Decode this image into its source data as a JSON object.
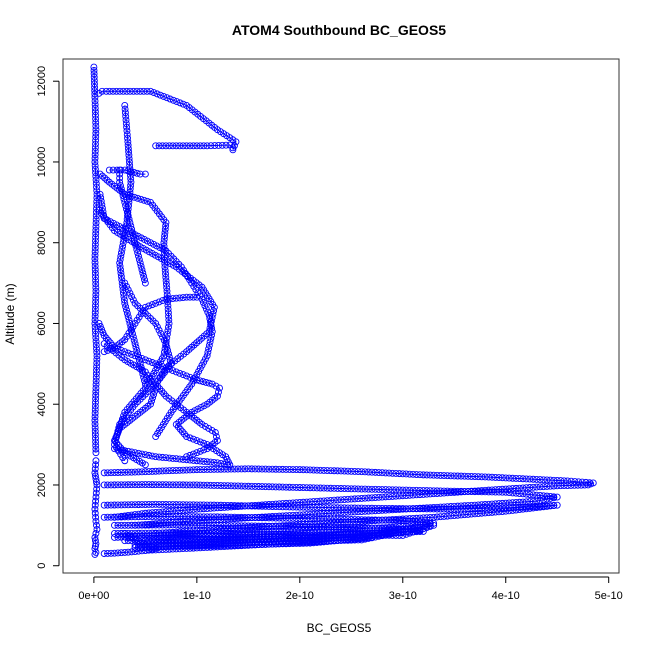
{
  "chart_data": {
    "type": "scatter",
    "title": "ATOM4 Southbound BC_GEOS5",
    "xlabel": "BC_GEOS5",
    "ylabel": "Altitude (m)",
    "xlim": [
      -3e-11,
      5.1e-10
    ],
    "ylim": [
      -180,
      12550
    ],
    "x_ticks": [
      0,
      1e-10,
      2e-10,
      3e-10,
      4e-10,
      5e-10
    ],
    "x_tick_labels": [
      "0e+00",
      "1e-10",
      "2e-10",
      "3e-10",
      "4e-10",
      "5e-10"
    ],
    "y_ticks": [
      0,
      2000,
      4000,
      6000,
      8000,
      10000,
      12000
    ],
    "y_tick_labels": [
      "0",
      "2000",
      "4000",
      "6000",
      "8000",
      "10000",
      "12000"
    ],
    "grid": false,
    "legend": "none",
    "marker": "open-circle",
    "connected_lines": true,
    "color": "#0000ff",
    "series": [
      {
        "x": [
          0.0,
          1e-12,
          2e-12,
          1e-12,
          3e-12,
          2e-12,
          1e-12,
          2e-12,
          1e-12,
          3e-12,
          2e-12,
          1e-12,
          2e-12
        ],
        "y": [
          12350,
          11600,
          10800,
          10000,
          9200,
          8400,
          7600,
          6800,
          6000,
          5200,
          4400,
          3600,
          2800
        ]
      },
      {
        "x": [
          2e-12,
          1e-12,
          3e-12,
          2e-12,
          1e-12,
          2e-12,
          3e-12,
          1e-12,
          2e-12,
          1e-12,
          2e-12,
          1e-12
        ],
        "y": [
          2600,
          2300,
          2000,
          1700,
          1400,
          1100,
          900,
          700,
          550,
          420,
          330,
          280
        ]
      },
      {
        "x": [
          5e-12,
          8e-12,
          1.2e-11,
          5.5e-11,
          9e-11,
          1.2e-10,
          1.38e-10,
          1.35e-10
        ],
        "y": [
          11700,
          11750,
          11750,
          11750,
          11400,
          10800,
          10500,
          10300
        ]
      },
      {
        "x": [
          6e-11,
          8e-11,
          1.1e-10,
          1.32e-10,
          1.35e-10
        ],
        "y": [
          10400,
          10400,
          10400,
          10420,
          10350
        ]
      },
      {
        "x": [
          1.5e-11,
          3e-11,
          4.5e-11,
          5e-11
        ],
        "y": [
          9800,
          9800,
          9700,
          9700
        ]
      },
      {
        "x": [
          6e-12,
          1.5e-11,
          3e-11,
          5.5e-11,
          7e-11,
          6.8e-11,
          6.9e-11,
          7.1e-11,
          7.3e-11,
          6.8e-11,
          5e-11,
          3e-11,
          2.2e-11
        ],
        "y": [
          9700,
          9500,
          9200,
          9000,
          8500,
          8000,
          7400,
          6800,
          6000,
          5200,
          4400,
          3800,
          3200
        ]
      },
      {
        "x": [
          6e-12,
          1e-11,
          4e-11,
          7e-11,
          8.5e-11,
          9.5e-11,
          1.05e-10,
          1.12e-10,
          1.15e-10,
          1.1e-10,
          9.5e-11,
          7.5e-11,
          6e-11
        ],
        "y": [
          9200,
          8600,
          8200,
          7800,
          7400,
          7000,
          6600,
          6200,
          5800,
          5200,
          4500,
          3800,
          3200
        ]
      },
      {
        "x": [
          5e-12,
          2e-11,
          4.5e-11,
          8e-11,
          1.05e-10,
          1.17e-10,
          1.12e-10,
          9e-11,
          7e-11,
          6e-11,
          7e-11,
          9e-11,
          1.05e-10,
          1.18e-10,
          1.2e-10,
          1.1e-10,
          9e-11
        ],
        "y": [
          8800,
          8300,
          7900,
          7400,
          6900,
          6400,
          5800,
          5300,
          4900,
          4500,
          4200,
          3800,
          3500,
          3300,
          3100,
          2900,
          2700
        ]
      },
      {
        "x": [
          5e-12,
          1e-11,
          2e-11,
          4e-11,
          6e-11,
          8e-11,
          1e-10,
          1.15e-10,
          1.22e-10,
          1.2e-10,
          1.1e-10,
          9.5e-11,
          8e-11,
          9e-11,
          1.1e-10,
          1.28e-10,
          1.32e-10
        ],
        "y": [
          6000,
          5700,
          5400,
          5200,
          5000,
          4800,
          4600,
          4500,
          4400,
          4200,
          4000,
          3800,
          3500,
          3200,
          3000,
          2700,
          2500
        ]
      },
      {
        "x": [
          3e-11,
          4e-11,
          6e-11,
          7e-11,
          7.5e-11,
          6e-11,
          4e-11,
          2.5e-11,
          2e-11,
          3e-11
        ],
        "y": [
          7000,
          6500,
          6000,
          5500,
          5000,
          4500,
          4000,
          3500,
          3000,
          2600
        ]
      },
      {
        "x": [
          1e-11,
          3e-11,
          5e-11,
          6e-11,
          5.5e-11,
          4e-11,
          2.5e-11,
          2e-11,
          3e-11,
          5e-11
        ],
        "y": [
          5500,
          5100,
          4800,
          4400,
          4000,
          3700,
          3400,
          3100,
          2800,
          2500
        ]
      },
      {
        "x": [
          2.5e-11,
          2.5e-11,
          3e-11,
          3.5e-11,
          4e-11,
          4.5e-11,
          5e-11
        ],
        "y": [
          9800,
          9500,
          9000,
          8500,
          8000,
          7500,
          7000
        ]
      },
      {
        "x": [
          3e-11,
          3.3e-11,
          3.6e-11,
          3.2e-11,
          2.5e-11,
          3e-11,
          4e-11,
          5e-11
        ],
        "y": [
          11400,
          10500,
          9500,
          8500,
          7500,
          6500,
          5500,
          4500
        ]
      },
      {
        "x": [
          1e-11,
          2e-11,
          3e-11,
          4e-11,
          5e-11,
          7e-11,
          9e-11,
          1e-10
        ],
        "y": [
          5300,
          5400,
          5600,
          6000,
          6400,
          6600,
          6650,
          6650
        ]
      },
      {
        "x": [
          2e-11,
          4e-11,
          6e-11,
          8e-11,
          1e-10,
          1.2e-10,
          1.3e-10
        ],
        "y": [
          2900,
          2800,
          2700,
          2650,
          2600,
          2550,
          2500
        ]
      },
      {
        "x": [
          1e-11,
          4e-11,
          7e-11,
          1e-10,
          1.5e-10,
          2e-10,
          2.6e-10,
          3.2e-10,
          3.8e-10,
          4.2e-10,
          4.6e-10,
          4.85e-10,
          4.8e-10,
          4.5e-10,
          4e-10,
          3.4e-10,
          2.8e-10,
          2.2e-10,
          1.6e-10,
          1e-10,
          5e-11,
          2e-11
        ],
        "y": [
          2300,
          2320,
          2350,
          2380,
          2400,
          2380,
          2330,
          2250,
          2200,
          2150,
          2100,
          2050,
          2000,
          1980,
          1900,
          1800,
          1700,
          1600,
          1500,
          1400,
          1300,
          1200
        ]
      },
      {
        "x": [
          1e-11,
          5e-11,
          1e-10,
          1.8e-10,
          2.6e-10,
          3.4e-10,
          4e-10,
          4.5e-10,
          4.3e-10,
          3.7e-10,
          3e-10,
          2.3e-10,
          1.6e-10,
          9e-11,
          4e-11
        ],
        "y": [
          2000,
          2010,
          2000,
          1950,
          1900,
          1850,
          1820,
          1700,
          1600,
          1500,
          1400,
          1300,
          1200,
          1100,
          1000
        ]
      },
      {
        "x": [
          1e-11,
          6e-11,
          1.2e-10,
          2e-10,
          2.8e-10,
          3.5e-10,
          4.2e-10,
          4.5e-10,
          4e-10,
          3.3e-10,
          2.6e-10,
          1.9e-10,
          1.2e-10,
          6e-11
        ],
        "y": [
          1500,
          1520,
          1500,
          1450,
          1420,
          1400,
          1450,
          1500,
          1350,
          1200,
          1100,
          1000,
          900,
          800
        ]
      },
      {
        "x": [
          1e-11,
          6e-11,
          1.2e-10,
          1.8e-10,
          2.4e-10,
          3e-10,
          3.3e-10,
          2.9e-10,
          2.4e-10,
          1.8e-10,
          1.2e-10,
          6e-11,
          2e-11
        ],
        "y": [
          1200,
          1220,
          1210,
          1180,
          1150,
          1120,
          1050,
          950,
          900,
          850,
          800,
          750,
          700
        ]
      },
      {
        "x": [
          2e-11,
          8e-11,
          1.4e-10,
          2e-10,
          2.6e-10,
          3.1e-10,
          3.2e-10,
          2.7e-10,
          2.2e-10,
          1.6e-10,
          1e-10,
          5e-11
        ],
        "y": [
          1000,
          1010,
          990,
          970,
          940,
          900,
          850,
          800,
          760,
          720,
          680,
          640
        ]
      },
      {
        "x": [
          2e-11,
          7e-11,
          1.3e-10,
          1.9e-10,
          2.5e-10,
          3e-10,
          3.3e-10,
          2.8e-10,
          2.2e-10,
          1.6e-10,
          1e-10,
          4e-11
        ],
        "y": [
          800,
          810,
          790,
          770,
          760,
          750,
          1000,
          820,
          720,
          650,
          580,
          520
        ]
      },
      {
        "x": [
          3e-11,
          8e-11,
          1.4e-10,
          2e-10,
          2.6e-10,
          3e-10,
          2.6e-10,
          2e-10,
          1.4e-10,
          8e-11,
          4e-11
        ],
        "y": [
          620,
          640,
          660,
          680,
          700,
          850,
          640,
          600,
          560,
          500,
          450
        ]
      },
      {
        "x": [
          4e-11,
          9e-11,
          1.5e-10,
          2.1e-10,
          2.7e-10,
          2.2e-10,
          1.6e-10,
          1e-10,
          5e-11
        ],
        "y": [
          460,
          480,
          520,
          560,
          700,
          600,
          520,
          440,
          380
        ]
      },
      {
        "x": [
          3e-11,
          4e-11,
          5e-11,
          6e-11,
          5e-11,
          4e-11,
          3e-11,
          2e-11,
          1e-11
        ],
        "y": [
          800,
          650,
          520,
          430,
          380,
          350,
          330,
          310,
          300
        ]
      }
    ]
  }
}
